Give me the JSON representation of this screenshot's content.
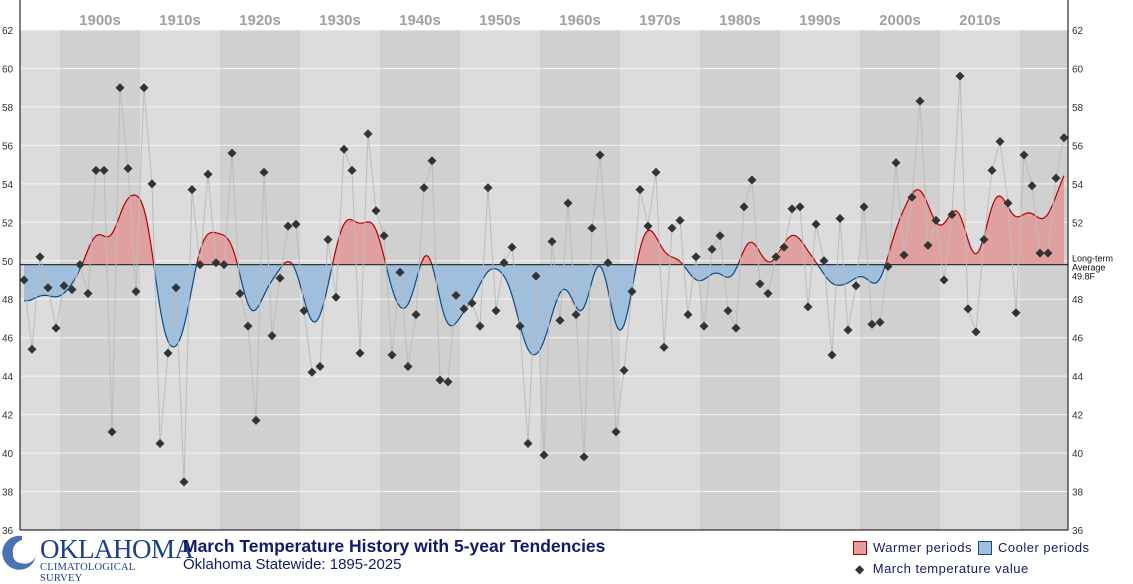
{
  "chart_data": {
    "type": "line",
    "title": "March Temperature History with 5-year Tendencies",
    "subtitle": "Oklahoma Statewide: 1895-2025",
    "xlabel": "",
    "ylabel": "",
    "ylim": [
      36,
      62
    ],
    "yticks": [
      36,
      38,
      40,
      42,
      44,
      46,
      48,
      50,
      52,
      54,
      56,
      58,
      60,
      62
    ],
    "xlim": [
      1894.5,
      2025.5
    ],
    "decades": [
      "1900s",
      "1910s",
      "1920s",
      "1930s",
      "1940s",
      "1950s",
      "1960s",
      "1970s",
      "1980s",
      "1990s",
      "2000s",
      "2010s"
    ],
    "grid": true,
    "average": 49.8,
    "average_label": [
      "Long-term",
      "Average",
      "49.8F"
    ],
    "legend": {
      "placement": "bottom-right",
      "warmer": "Warmer periods",
      "cooler": "Cooler periods",
      "values": "March temperature value"
    },
    "colors": {
      "warm_fill": "#e0a0a0",
      "warm_line": "#b00000",
      "cool_fill": "#a0bfdc",
      "cool_line": "#0a4a8a",
      "band_light": "#dcdcdc",
      "band_dark": "#d0d0d0",
      "marker": "#333333"
    },
    "start_year": 1895,
    "values": [
      49.0,
      45.4,
      50.2,
      48.6,
      46.5,
      48.7,
      48.5,
      49.8,
      48.3,
      54.7,
      54.7,
      41.1,
      59.0,
      54.8,
      48.4,
      59.0,
      54.0,
      40.5,
      45.2,
      48.6,
      38.5,
      53.7,
      49.8,
      54.5,
      49.9,
      49.8,
      55.6,
      48.3,
      46.6,
      41.7,
      54.6,
      46.1,
      49.1,
      51.8,
      51.9,
      47.4,
      44.2,
      44.5,
      51.1,
      48.1,
      55.8,
      54.7,
      45.2,
      56.6,
      52.6,
      51.3,
      45.1,
      49.4,
      44.5,
      47.2,
      53.8,
      55.2,
      43.8,
      43.7,
      48.2,
      47.5,
      47.8,
      46.6,
      53.8,
      47.4,
      49.9,
      50.7,
      46.6,
      40.5,
      49.2,
      39.9,
      51.0,
      46.9,
      53.0,
      47.2,
      39.8,
      51.7,
      55.5,
      49.9,
      41.1,
      44.3,
      48.4,
      53.7,
      51.8,
      54.6,
      45.5,
      51.7,
      52.1,
      47.2,
      50.2,
      46.6,
      50.6,
      51.3,
      47.4,
      46.5,
      52.8,
      54.2,
      48.8,
      48.3,
      50.2,
      50.7,
      52.7,
      52.8,
      47.6,
      51.9,
      50.0,
      45.1,
      52.2,
      46.4,
      48.7,
      52.8,
      46.7,
      46.8,
      49.7,
      55.1,
      50.3,
      53.3,
      58.3,
      50.8,
      52.1,
      49.0,
      52.4,
      59.6,
      47.5,
      46.3,
      51.1,
      54.7,
      56.2,
      53.0,
      47.3,
      55.5,
      53.9,
      50.4,
      50.4,
      54.3,
      56.4
    ]
  },
  "logo": {
    "name": "OKLAHOMA",
    "sub": "CLIMATOLOGICAL SURVEY"
  }
}
